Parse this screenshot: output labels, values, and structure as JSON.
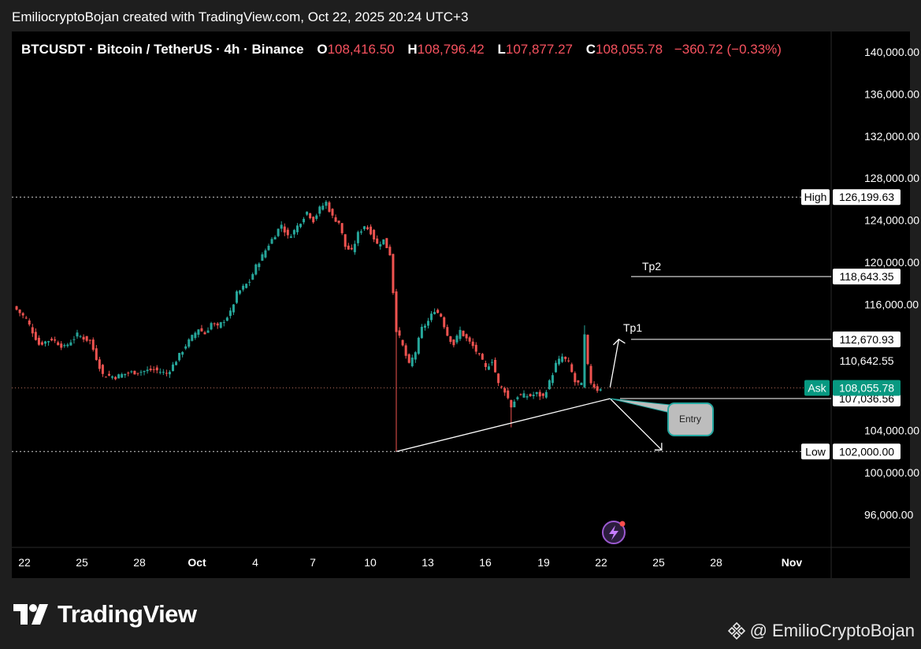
{
  "caption": "EmiliocryptoBojan created with TradingView.com, Oct 22, 2025 20:24 UTC+3",
  "legend": {
    "symbol": "BTCUSDT · Bitcoin / TetherUS · 4h · Binance",
    "open_label": "O",
    "open": "108,416.50",
    "high_label": "H",
    "high": "108,796.42",
    "low_label": "L",
    "low": "107,877.27",
    "close_label": "C",
    "close": "108,055.78",
    "change": "−360.72 (−0.33%)"
  },
  "colors": {
    "up": "#26a69a",
    "down": "#ef5350",
    "background": "#000000",
    "text": "#ffffff"
  },
  "chart_data": {
    "type": "candlestick",
    "timeframe": "4h",
    "ylim": [
      93000,
      142000
    ],
    "y_ticks": [
      140000,
      136000,
      132000,
      128000,
      124000,
      120000,
      116000,
      104000,
      100000,
      96000
    ],
    "y_tick_labels": [
      "140,000.00",
      "136,000.00",
      "132,000.00",
      "128,000.00",
      "124,000.00",
      "120,000.00",
      "116,000.00",
      "104,000.00",
      "100,000.00",
      "96,000.00"
    ],
    "x_tick_labels": [
      "22",
      "25",
      "28",
      "Oct",
      "4",
      "7",
      "10",
      "13",
      "16",
      "19",
      "22",
      "25",
      "28",
      "Nov"
    ],
    "price_path": [
      [
        0,
        115800
      ],
      [
        4,
        114600
      ],
      [
        8,
        112200
      ],
      [
        12,
        112700
      ],
      [
        16,
        111900
      ],
      [
        20,
        113100
      ],
      [
        24,
        112500
      ],
      [
        28,
        109300
      ],
      [
        32,
        109100
      ],
      [
        36,
        109500
      ],
      [
        40,
        109600
      ],
      [
        44,
        109800
      ],
      [
        48,
        109400
      ],
      [
        50,
        110200
      ],
      [
        54,
        112100
      ],
      [
        58,
        113700
      ],
      [
        60,
        113200
      ],
      [
        62,
        114200
      ],
      [
        64,
        113800
      ],
      [
        68,
        115200
      ],
      [
        70,
        117000
      ],
      [
        74,
        118200
      ],
      [
        76,
        119600
      ],
      [
        78,
        120600
      ],
      [
        80,
        121700
      ],
      [
        84,
        123600
      ],
      [
        86,
        122400
      ],
      [
        88,
        123000
      ],
      [
        90,
        123900
      ],
      [
        92,
        124800
      ],
      [
        94,
        124000
      ],
      [
        96,
        125100
      ],
      [
        98,
        125700
      ],
      [
        100,
        124300
      ],
      [
        102,
        123800
      ],
      [
        104,
        121500
      ],
      [
        106,
        121000
      ],
      [
        108,
        122700
      ],
      [
        110,
        123500
      ],
      [
        112,
        122900
      ],
      [
        114,
        121700
      ],
      [
        116,
        122100
      ],
      [
        118,
        120800
      ],
      [
        120,
        113600
      ],
      [
        122,
        112000
      ],
      [
        124,
        110200
      ],
      [
        126,
        111500
      ],
      [
        128,
        113700
      ],
      [
        130,
        114400
      ],
      [
        132,
        115500
      ],
      [
        134,
        114900
      ],
      [
        136,
        113100
      ],
      [
        138,
        112200
      ],
      [
        140,
        113500
      ],
      [
        142,
        112700
      ],
      [
        144,
        112000
      ],
      [
        146,
        111100
      ],
      [
        148,
        109900
      ],
      [
        150,
        110700
      ],
      [
        152,
        108400
      ],
      [
        154,
        107800
      ],
      [
        156,
        106300
      ],
      [
        158,
        107300
      ],
      [
        160,
        107300
      ],
      [
        162,
        107300
      ],
      [
        164,
        107500
      ],
      [
        166,
        107200
      ],
      [
        168,
        108600
      ],
      [
        170,
        110300
      ],
      [
        172,
        111000
      ],
      [
        174,
        110400
      ],
      [
        176,
        108600
      ],
      [
        178,
        108300
      ],
      [
        179,
        113000
      ],
      [
        180,
        110100
      ],
      [
        181,
        108600
      ],
      [
        182,
        108200
      ],
      [
        183,
        107900
      ],
      [
        184,
        108056
      ]
    ],
    "wicks": [
      {
        "i": 120,
        "low": 102000
      },
      {
        "i": 179,
        "high": 114000
      },
      {
        "i": 156,
        "low": 104300
      }
    ],
    "horizontal_lines": [
      {
        "label": "High",
        "price": 126199.63,
        "value_label": "126,199.63",
        "style": "dotted"
      },
      {
        "label": "Low",
        "price": 102000.0,
        "value_label": "102,000.00",
        "style": "dotted"
      },
      {
        "label": "Tp2",
        "price": 118643.35,
        "value_label": "118,643.35",
        "style": "solid"
      },
      {
        "label": "Tp1",
        "price": 112670.93,
        "value_label": "112,670.93",
        "style": "solid"
      },
      {
        "label": "",
        "price": 107036.56,
        "value_label": "107,036.56",
        "style": "solid"
      },
      {
        "label": "Ask",
        "price": 108055.78,
        "value_label": "108,055.78",
        "style": "ask"
      }
    ],
    "extra_price_label": {
      "price": 110642.55,
      "value_label": "110,642.55"
    },
    "annotations": [
      {
        "type": "trendline",
        "from": [
          120,
          102000
        ],
        "to": [
          187,
          107036
        ]
      },
      {
        "type": "arrow",
        "label": "Tp1",
        "from": [
          187,
          108100
        ],
        "to": [
          189,
          112670
        ]
      },
      {
        "type": "arrow",
        "label": "",
        "from": [
          187,
          107036
        ],
        "to": [
          197,
          102000
        ]
      },
      {
        "type": "callout",
        "label": "Entry"
      }
    ]
  },
  "labels": {
    "high": "High",
    "low": "Low",
    "ask": "Ask",
    "tp1": "Tp1",
    "tp2": "Tp2",
    "entry": "Entry"
  },
  "brand": {
    "logo_text": "TradingView",
    "watermark": "@ EmilioCryptoBojan"
  }
}
